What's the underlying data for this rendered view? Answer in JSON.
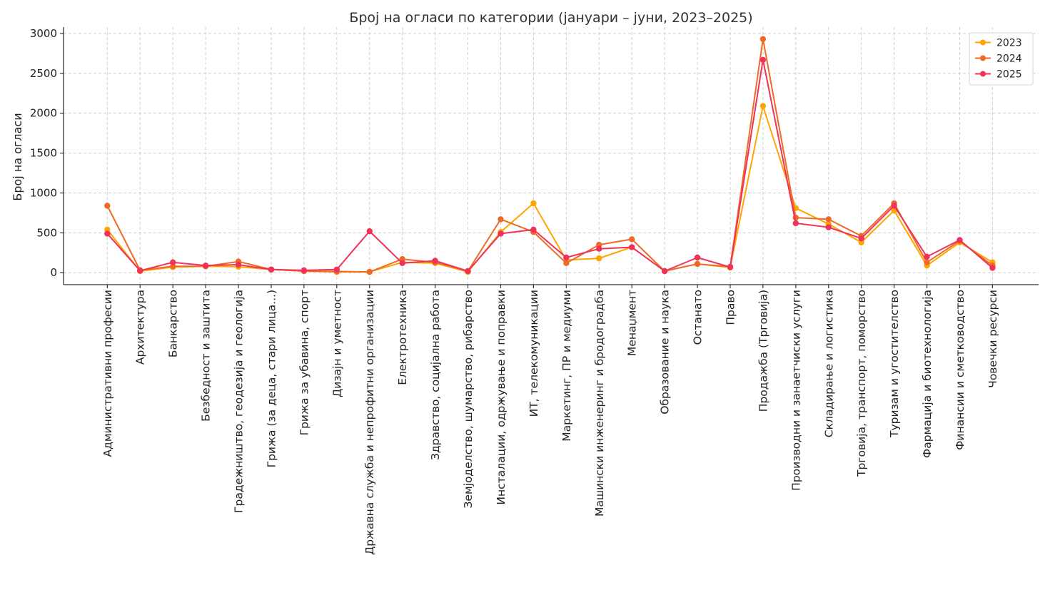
{
  "chart_data": {
    "type": "line",
    "title": "Број на огласи по категории (јануари – јуни, 2023–2025)",
    "xlabel": "",
    "ylabel": "Број на огласи",
    "ylim": [
      -150,
      3080
    ],
    "yticks": [
      0,
      500,
      1000,
      1500,
      2000,
      2500,
      3000
    ],
    "grid": true,
    "legend_position": "top-right",
    "categories": [
      "Административни професии",
      "Архитектура",
      "Банкарство",
      "Безбедност и заштита",
      "Градежништво, геодезија и геологија",
      "Грижа (за деца, стари лица...)",
      "Грижа за убавина, спорт",
      "Дизајн и уметност",
      "Државна служба и непрофитни организации",
      "Електротехника",
      "Здравство, социјална работа",
      "Земјоделство, шумарство, рибарство",
      "Инсталации, одржување и поправки",
      "ИТ, телекомуникации",
      "Маркетинг, ПР и медиуми",
      "Машински инженеринг и бродоградба",
      "Менаџмент",
      "Образование и наука",
      "Останато",
      "Право",
      "Продажба (Трговија)",
      "Производни и занаетчиски услуги",
      "Складирање и логистика",
      "Трговија, транспорт, поморство",
      "Туризам и угостителство",
      "Фармација и биотехнологија",
      "Финансии и сметководство",
      "Човечки ресурси"
    ],
    "series": [
      {
        "name": "2023",
        "color": "#FFA500",
        "values": [
          540,
          20,
          70,
          80,
          75,
          40,
          20,
          10,
          10,
          130,
          120,
          10,
          510,
          870,
          160,
          180,
          320,
          20,
          110,
          65,
          2090,
          810,
          610,
          380,
          780,
          90,
          380,
          130
        ]
      },
      {
        "name": "2024",
        "color": "#EE6A26",
        "values": [
          840,
          30,
          80,
          80,
          140,
          40,
          20,
          15,
          10,
          170,
          130,
          20,
          670,
          510,
          120,
          350,
          420,
          20,
          110,
          75,
          2930,
          690,
          670,
          460,
          870,
          130,
          400,
          90
        ]
      },
      {
        "name": "2025",
        "color": "#F0325A",
        "values": [
          490,
          25,
          130,
          90,
          100,
          40,
          30,
          40,
          520,
          120,
          150,
          20,
          490,
          540,
          190,
          300,
          320,
          20,
          190,
          70,
          2670,
          620,
          570,
          430,
          840,
          200,
          410,
          60
        ]
      }
    ]
  }
}
